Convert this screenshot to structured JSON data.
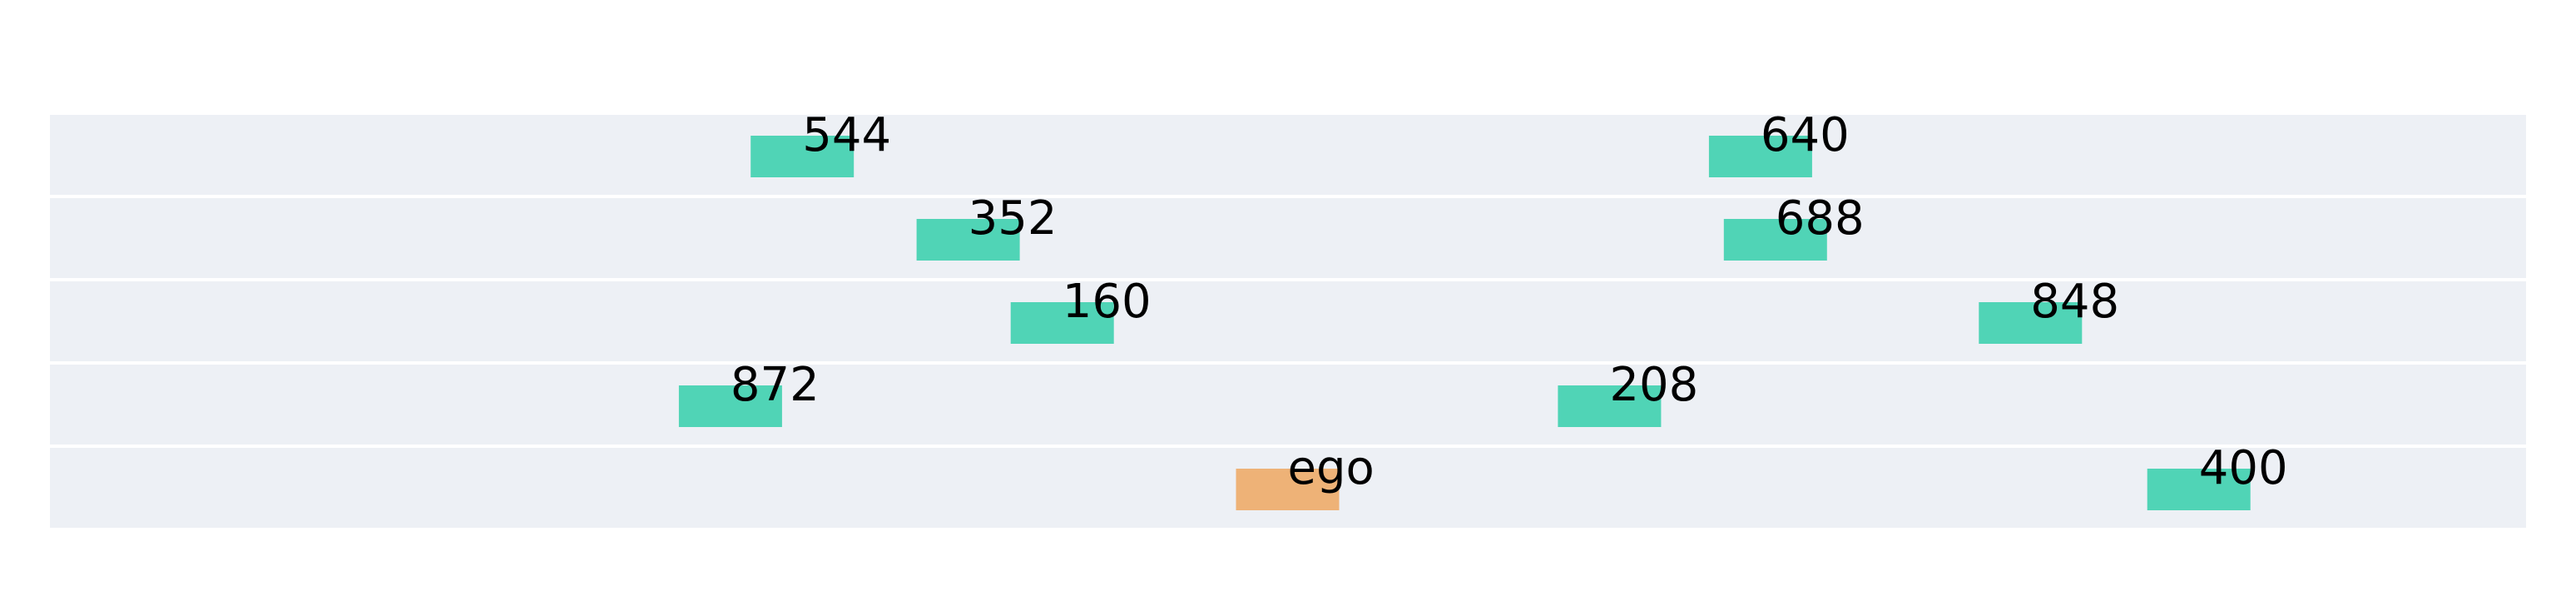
{
  "lanes": [
    {
      "vehicles": [
        {
          "label": "544",
          "kind": "other",
          "position": 0.283
        },
        {
          "label": "640",
          "kind": "other",
          "position": 0.67
        }
      ]
    },
    {
      "vehicles": [
        {
          "label": "352",
          "kind": "other",
          "position": 0.35
        },
        {
          "label": "688",
          "kind": "other",
          "position": 0.676
        }
      ]
    },
    {
      "vehicles": [
        {
          "label": "160",
          "kind": "other",
          "position": 0.388
        },
        {
          "label": "848",
          "kind": "other",
          "position": 0.779
        }
      ]
    },
    {
      "vehicles": [
        {
          "label": "872",
          "kind": "other",
          "position": 0.254
        },
        {
          "label": "208",
          "kind": "other",
          "position": 0.609
        }
      ]
    },
    {
      "vehicles": [
        {
          "label": "ego",
          "kind": "ego",
          "position": 0.479
        },
        {
          "label": "400",
          "kind": "other",
          "position": 0.847
        }
      ]
    }
  ],
  "colors": {
    "lane_background": "#edf0f5",
    "other_vehicle": "#50d4b6",
    "ego_vehicle": "#eeb277"
  }
}
